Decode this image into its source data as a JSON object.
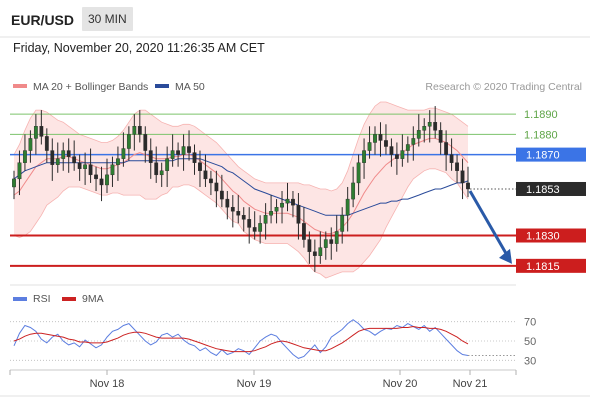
{
  "header": {
    "pair": "EUR/USD",
    "timeframe": "30 MIN"
  },
  "datetime": "Friday, November 20, 2020 11:26:35 AM CET",
  "legend": {
    "bollinger": "MA 20 + Bollinger Bands",
    "ma50": "MA 50"
  },
  "credit": "Research © 2020 Trading Central",
  "rsi_legend": {
    "rsi": "RSI",
    "ma9": "9MA"
  },
  "colors": {
    "bollinger": "#f08a8a",
    "band_fill": "#fde0df",
    "ma50": "#2a4b9a",
    "candle": "#2e7d32",
    "resistance": "#7cc36b",
    "pivot": "#3b74e6",
    "support": "#cc1e1e",
    "arrow": "#2a5aa8",
    "rsi": "#5c7ee0",
    "rsi_ma": "#cc2222"
  },
  "chart_data": {
    "type": "candlestick",
    "xlabels": [
      "Nov 18",
      "Nov 19",
      "Nov 20",
      "Nov 21"
    ],
    "ylim": [
      1.1808,
      1.1897
    ],
    "levels": [
      {
        "label": "1.1890",
        "value": 1.189,
        "kind": "resistance"
      },
      {
        "label": "1.1880",
        "value": 1.188,
        "kind": "resistance"
      },
      {
        "label": "1.1870",
        "value": 1.187,
        "kind": "pivot"
      },
      {
        "label": "1.1853",
        "value": 1.1853,
        "kind": "last"
      },
      {
        "label": "1.1830",
        "value": 1.183,
        "kind": "support"
      },
      {
        "label": "1.1815",
        "value": 1.1815,
        "kind": "support"
      }
    ],
    "close": [
      1.1858,
      1.1866,
      1.1872,
      1.1878,
      1.1884,
      1.1879,
      1.1872,
      1.1865,
      1.1868,
      1.1872,
      1.1869,
      1.1866,
      1.1863,
      1.1865,
      1.186,
      1.1858,
      1.1855,
      1.186,
      1.1865,
      1.1868,
      1.1873,
      1.188,
      1.1884,
      1.188,
      1.1872,
      1.1866,
      1.186,
      1.1862,
      1.1868,
      1.1872,
      1.187,
      1.1874,
      1.1871,
      1.1866,
      1.1862,
      1.1858,
      1.1856,
      1.1852,
      1.1848,
      1.1844,
      1.1842,
      1.184,
      1.1838,
      1.1834,
      1.1832,
      1.1836,
      1.184,
      1.1842,
      1.1844,
      1.1846,
      1.1848,
      1.1845,
      1.1836,
      1.1828,
      1.1822,
      1.182,
      1.1824,
      1.1828,
      1.1826,
      1.1832,
      1.184,
      1.1848,
      1.1856,
      1.1866,
      1.1872,
      1.1876,
      1.188,
      1.1877,
      1.1874,
      1.187,
      1.1868,
      1.1872,
      1.1875,
      1.1878,
      1.1882,
      1.1884,
      1.1886,
      1.1882,
      1.1876,
      1.187,
      1.1866,
      1.1862,
      1.1856,
      1.1853
    ],
    "ma20": [
      1.185,
      1.1852,
      1.1856,
      1.186,
      1.1864,
      1.1866,
      1.1868,
      1.1868,
      1.1868,
      1.1869,
      1.1869,
      1.1868,
      1.1867,
      1.1866,
      1.1865,
      1.1864,
      1.1863,
      1.1863,
      1.1864,
      1.1865,
      1.1866,
      1.1868,
      1.187,
      1.1871,
      1.187,
      1.1869,
      1.1868,
      1.1868,
      1.1868,
      1.1869,
      1.1869,
      1.187,
      1.187,
      1.1869,
      1.1867,
      1.1865,
      1.1863,
      1.1861,
      1.1858,
      1.1855,
      1.1852,
      1.185,
      1.1847,
      1.1845,
      1.1843,
      1.1842,
      1.1841,
      1.1841,
      1.1841,
      1.1841,
      1.1841,
      1.184,
      1.1839,
      1.1837,
      1.1835,
      1.1833,
      1.1832,
      1.1831,
      1.1831,
      1.1832,
      1.1834,
      1.1837,
      1.1841,
      1.1846,
      1.1851,
      1.1855,
      1.1859,
      1.1862,
      1.1865,
      1.1867,
      1.1869,
      1.1871,
      1.1873,
      1.1875,
      1.1876,
      1.1877,
      1.1878,
      1.1878,
      1.1877,
      1.1876,
      1.1874,
      1.1872,
      1.1869,
      1.1866
    ],
    "bb_upper": [
      1.187,
      1.1875,
      1.1882,
      1.1888,
      1.1892,
      1.1892,
      1.1891,
      1.1889,
      1.1887,
      1.1886,
      1.1884,
      1.1882,
      1.188,
      1.1879,
      1.1878,
      1.1877,
      1.1876,
      1.1876,
      1.1877,
      1.1879,
      1.1882,
      1.1886,
      1.189,
      1.1892,
      1.1892,
      1.189,
      1.1888,
      1.1886,
      1.1885,
      1.1884,
      1.1884,
      1.1885,
      1.1885,
      1.1884,
      1.1882,
      1.188,
      1.1878,
      1.1876,
      1.1873,
      1.187,
      1.1867,
      1.1864,
      1.1862,
      1.186,
      1.1858,
      1.1857,
      1.1856,
      1.1856,
      1.1856,
      1.1856,
      1.1856,
      1.1856,
      1.1856,
      1.1855,
      1.1855,
      1.1854,
      1.1853,
      1.1853,
      1.1852,
      1.1853,
      1.1856,
      1.1862,
      1.187,
      1.1878,
      1.1885,
      1.189,
      1.1894,
      1.1896,
      1.1896,
      1.1895,
      1.1894,
      1.1893,
      1.1892,
      1.1892,
      1.1892,
      1.1892,
      1.1893,
      1.1893,
      1.1892,
      1.1891,
      1.189,
      1.1888,
      1.1886,
      1.1884
    ],
    "bb_lower": [
      1.183,
      1.1829,
      1.183,
      1.1832,
      1.1836,
      1.184,
      1.1845,
      1.1847,
      1.1849,
      1.1852,
      1.1854,
      1.1854,
      1.1854,
      1.1853,
      1.1852,
      1.1851,
      1.185,
      1.185,
      1.1851,
      1.1851,
      1.185,
      1.185,
      1.185,
      1.185,
      1.1848,
      1.1848,
      1.1848,
      1.185,
      1.1851,
      1.1854,
      1.1854,
      1.1855,
      1.1855,
      1.1854,
      1.1852,
      1.185,
      1.1848,
      1.1846,
      1.1843,
      1.184,
      1.1837,
      1.1836,
      1.1832,
      1.183,
      1.1828,
      1.1827,
      1.1826,
      1.1826,
      1.1826,
      1.1826,
      1.1826,
      1.1824,
      1.1822,
      1.1819,
      1.1815,
      1.1812,
      1.1811,
      1.1809,
      1.181,
      1.1811,
      1.1812,
      1.1812,
      1.1812,
      1.1814,
      1.1817,
      1.182,
      1.1824,
      1.1828,
      1.1834,
      1.1839,
      1.1844,
      1.1849,
      1.1854,
      1.1858,
      1.186,
      1.1862,
      1.1863,
      1.1863,
      1.1862,
      1.1861,
      1.1858,
      1.1856,
      1.1852,
      1.1848
    ],
    "ma50": [
      1.1858,
      1.186,
      1.1862,
      1.1863,
      1.1864,
      1.1865,
      1.1866,
      1.1866,
      1.1866,
      1.1866,
      1.1866,
      1.1866,
      1.1866,
      1.1866,
      1.1866,
      1.1866,
      1.1866,
      1.1866,
      1.1866,
      1.1866,
      1.1866,
      1.1867,
      1.1867,
      1.1867,
      1.1867,
      1.1867,
      1.1867,
      1.1867,
      1.1867,
      1.1867,
      1.1868,
      1.1868,
      1.1868,
      1.1868,
      1.1868,
      1.1867,
      1.1866,
      1.1865,
      1.1864,
      1.1862,
      1.1861,
      1.1859,
      1.1857,
      1.1855,
      1.1853,
      1.1852,
      1.1851,
      1.185,
      1.1849,
      1.1848,
      1.1847,
      1.1846,
      1.1845,
      1.1844,
      1.1843,
      1.1842,
      1.1841,
      1.184,
      1.184,
      1.184,
      1.184,
      1.184,
      1.1841,
      1.1842,
      1.1843,
      1.1844,
      1.1845,
      1.1846,
      1.1846,
      1.1847,
      1.1847,
      1.1848,
      1.1848,
      1.1849,
      1.185,
      1.1851,
      1.1852,
      1.1853,
      1.1853,
      1.1854,
      1.1855,
      1.1856,
      1.1856,
      1.1857
    ],
    "forecast": {
      "from": 1.1853,
      "to": 1.1815
    },
    "rsi": {
      "ylim": [
        20,
        80
      ],
      "ticks": [
        "70",
        "50",
        "30"
      ],
      "tick_values": [
        70,
        50,
        30
      ],
      "rsi": [
        45,
        58,
        66,
        64,
        60,
        52,
        48,
        54,
        57,
        50,
        46,
        48,
        44,
        51,
        47,
        43,
        46,
        54,
        60,
        62,
        66,
        68,
        62,
        56,
        50,
        46,
        49,
        56,
        58,
        54,
        57,
        51,
        47,
        45,
        40,
        43,
        38,
        35,
        41,
        36,
        38,
        42,
        40,
        36,
        43,
        50,
        54,
        57,
        55,
        48,
        42,
        36,
        32,
        34,
        40,
        46,
        38,
        44,
        54,
        58,
        62,
        68,
        72,
        68,
        62,
        60,
        56,
        60,
        63,
        62,
        66,
        64,
        68,
        65,
        62,
        66,
        60,
        64,
        58,
        52,
        46,
        40,
        36,
        35
      ],
      "ma": [
        50,
        52,
        55,
        57,
        58,
        58,
        57,
        56,
        55,
        54,
        52,
        51,
        49,
        49,
        48,
        48,
        48,
        49,
        51,
        53,
        56,
        58,
        59,
        59,
        58,
        56,
        54,
        53,
        53,
        53,
        53,
        53,
        52,
        50,
        48,
        46,
        44,
        42,
        41,
        40,
        39,
        39,
        39,
        39,
        40,
        42,
        44,
        47,
        49,
        50,
        49,
        47,
        45,
        43,
        42,
        41,
        40,
        40,
        42,
        45,
        48,
        52,
        56,
        60,
        62,
        63,
        63,
        63,
        63,
        63,
        63,
        64,
        64,
        65,
        64,
        64,
        63,
        63,
        62,
        60,
        57,
        54,
        50,
        47
      ]
    }
  }
}
